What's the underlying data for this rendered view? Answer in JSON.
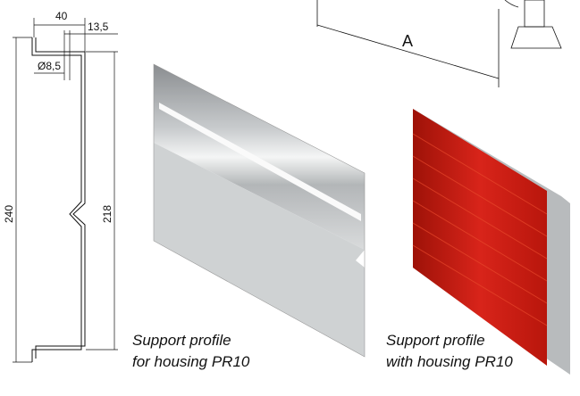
{
  "drawing": {
    "dimensions": [
      "40",
      "13,5",
      "Ø8,5",
      "240",
      "218",
      "A"
    ]
  },
  "captions": [
    {
      "line1": "Support profile",
      "line2": "for housing PR10"
    },
    {
      "line1": "Support profile",
      "line2": "with housing PR10"
    }
  ]
}
